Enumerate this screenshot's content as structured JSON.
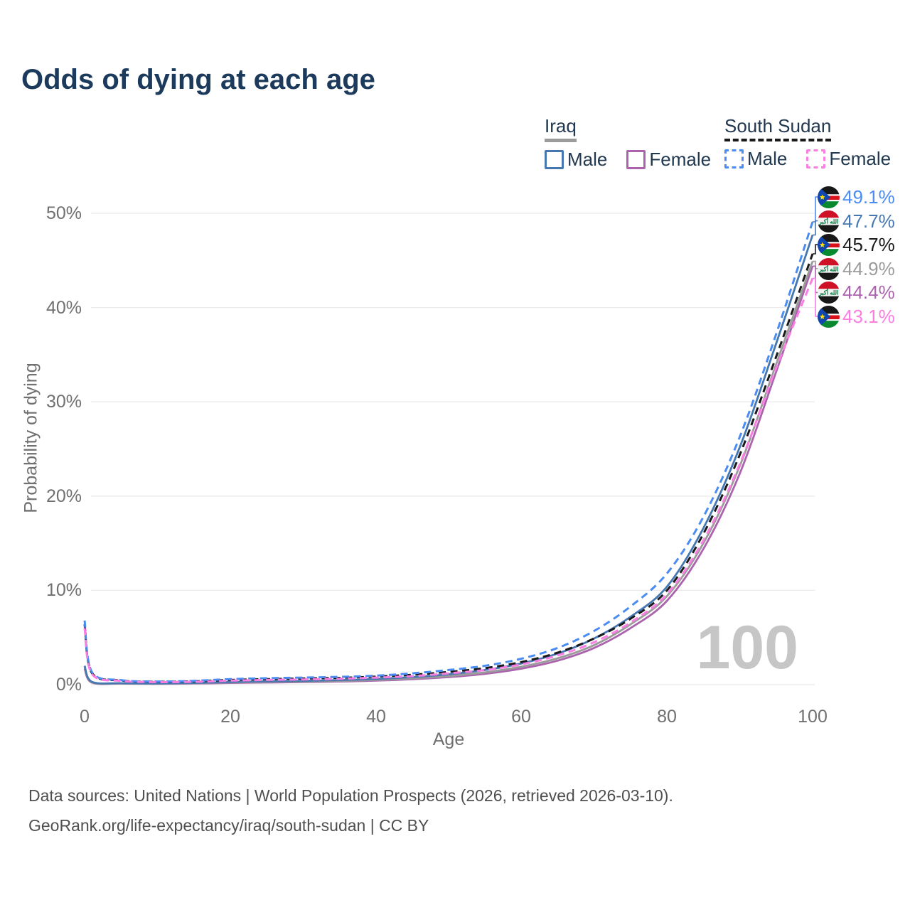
{
  "title": "Odds of dying at each age",
  "watermark": "100",
  "legend": {
    "groups": [
      {
        "country": "Iraq",
        "underline": "solid",
        "items": [
          {
            "label": "Male",
            "series": "iraq_male"
          },
          {
            "label": "Female",
            "series": "iraq_female"
          }
        ]
      },
      {
        "country": "South Sudan",
        "underline": "dashed",
        "items": [
          {
            "label": "Male",
            "series": "ss_male"
          },
          {
            "label": "Female",
            "series": "ss_female"
          }
        ]
      }
    ]
  },
  "axes": {
    "y_title": "Probability of dying",
    "x_title": "Age",
    "y_tick_labels": [
      "0%",
      "10%",
      "20%",
      "30%",
      "40%",
      "50%"
    ],
    "x_tick_labels": [
      "0",
      "20",
      "40",
      "60",
      "80",
      "100"
    ]
  },
  "colors": {
    "iraq_male": "#4677b0",
    "iraq_female": "#ab63ae",
    "iraq_total": "#9b9b9b",
    "ss_male": "#4a8cf2",
    "ss_female": "#fa7de2",
    "ss_total": "#1a1a1a",
    "grid": "#ebebeb",
    "title_text": "#1b3a5c",
    "tick_text": "#707070"
  },
  "chart_data": {
    "type": "line",
    "title": "Odds of dying at each age",
    "xlabel": "Age",
    "ylabel": "Probability of dying",
    "xlim": [
      0,
      100
    ],
    "ylim_pct": [
      0,
      50
    ],
    "x_ticks": [
      0,
      20,
      40,
      60,
      80,
      100
    ],
    "y_ticks_pct": [
      0,
      10,
      20,
      30,
      40,
      50
    ],
    "grid": "horizontal-only",
    "legend_position": "top-right",
    "x": [
      0,
      1,
      5,
      10,
      15,
      20,
      25,
      30,
      35,
      40,
      45,
      50,
      55,
      60,
      65,
      70,
      75,
      80,
      85,
      90,
      95,
      100
    ],
    "series": [
      {
        "id": "ss_male",
        "name": "South Sudan Male",
        "style": "dashed",
        "color": "#4a8cf2",
        "end_label": "49.1%",
        "values": [
          6.8,
          1.35,
          0.48,
          0.33,
          0.4,
          0.58,
          0.68,
          0.75,
          0.82,
          0.95,
          1.2,
          1.55,
          2.0,
          2.75,
          3.9,
          5.7,
          8.3,
          11.8,
          17.8,
          26.3,
          37.2,
          49.1
        ]
      },
      {
        "id": "iraq_male",
        "name": "Iraq Male",
        "style": "solid",
        "color": "#4677b0",
        "end_label": "47.7%",
        "values": [
          2.0,
          0.3,
          0.15,
          0.13,
          0.18,
          0.28,
          0.35,
          0.4,
          0.48,
          0.6,
          0.8,
          1.1,
          1.55,
          2.25,
          3.3,
          4.9,
          7.2,
          10.4,
          16.6,
          25.2,
          36.2,
          47.7
        ]
      },
      {
        "id": "ss_total",
        "name": "South Sudan (both sexes)",
        "style": "dashed",
        "color": "#1a1a1a",
        "end_label": "45.7%",
        "values": [
          6.4,
          1.25,
          0.44,
          0.3,
          0.35,
          0.5,
          0.58,
          0.65,
          0.72,
          0.85,
          1.05,
          1.35,
          1.75,
          2.4,
          3.4,
          4.9,
          7.0,
          10.0,
          16.0,
          24.4,
          34.8,
          45.7
        ]
      },
      {
        "id": "iraq_total",
        "name": "Iraq (both sexes)",
        "style": "solid",
        "color": "#9b9b9b",
        "end_label": "44.9%",
        "values": [
          1.85,
          0.26,
          0.13,
          0.11,
          0.15,
          0.23,
          0.29,
          0.33,
          0.4,
          0.5,
          0.67,
          0.92,
          1.3,
          1.9,
          2.8,
          4.2,
          6.4,
          9.4,
          15.0,
          23.2,
          34.0,
          44.9
        ]
      },
      {
        "id": "iraq_female",
        "name": "Iraq Female",
        "style": "solid",
        "color": "#ab63ae",
        "end_label": "44.4%",
        "values": [
          1.7,
          0.22,
          0.11,
          0.09,
          0.12,
          0.18,
          0.23,
          0.27,
          0.33,
          0.42,
          0.57,
          0.8,
          1.15,
          1.7,
          2.55,
          3.9,
          6.0,
          8.9,
          14.4,
          22.4,
          33.2,
          44.4
        ]
      },
      {
        "id": "ss_female",
        "name": "South Sudan Female",
        "style": "dashed",
        "color": "#fa7de2",
        "end_label": "43.1%",
        "values": [
          6.0,
          1.15,
          0.4,
          0.27,
          0.3,
          0.42,
          0.5,
          0.55,
          0.62,
          0.75,
          0.9,
          1.2,
          1.55,
          2.15,
          3.1,
          4.5,
          6.6,
          9.6,
          15.3,
          23.4,
          33.6,
          43.1
        ]
      }
    ]
  },
  "end_labels": [
    {
      "value": "49.1%",
      "series": "ss_male",
      "flag": "south-sudan"
    },
    {
      "value": "47.7%",
      "series": "iraq_male",
      "flag": "iraq"
    },
    {
      "value": "45.7%",
      "series": "ss_total",
      "flag": "south-sudan"
    },
    {
      "value": "44.9%",
      "series": "iraq_total",
      "flag": "iraq"
    },
    {
      "value": "44.4%",
      "series": "iraq_female",
      "flag": "iraq"
    },
    {
      "value": "43.1%",
      "series": "ss_female",
      "flag": "south-sudan"
    }
  ],
  "footer": {
    "line1": "Data sources: United Nations | World Population Prospects (2026, retrieved 2026-03-10).",
    "line2": "GeoRank.org/life-expectancy/iraq/south-sudan | CC BY"
  }
}
